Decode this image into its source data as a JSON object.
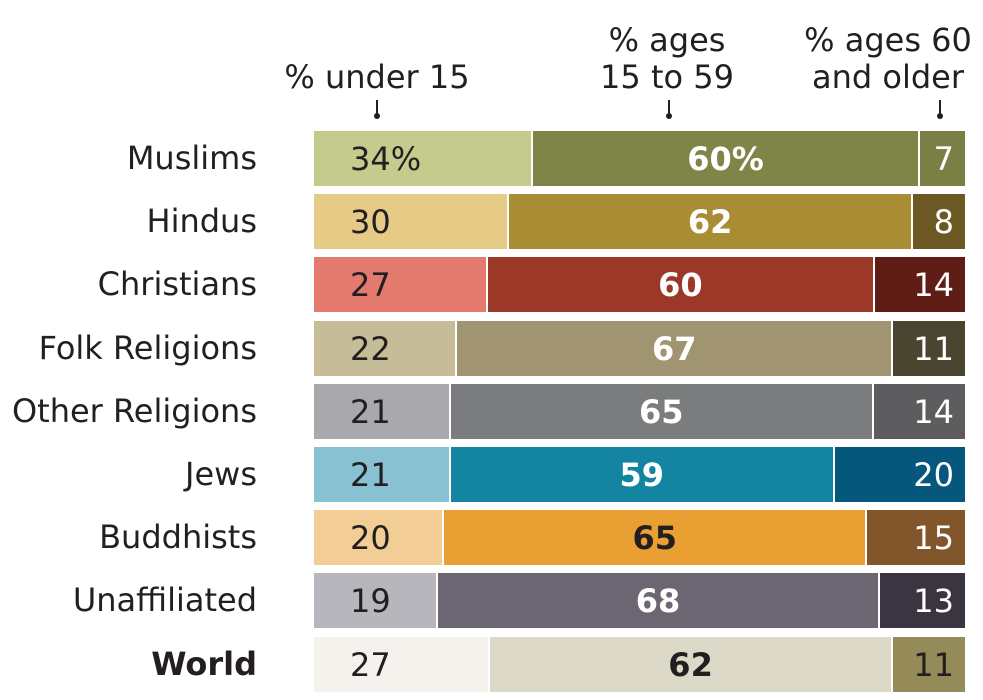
{
  "headers": {
    "under15": "% under 15",
    "age15to59_line1": "% ages",
    "age15to59_line2": "15 to 59",
    "age60_line1": "% ages 60",
    "age60_line2": "and older"
  },
  "chart_data": {
    "type": "bar",
    "stacked": true,
    "orientation": "horizontal",
    "categories": [
      "Muslims",
      "Hindus",
      "Christians",
      "Folk Religions",
      "Other Religions",
      "Jews",
      "Buddhists",
      "Unaffiliated",
      "World"
    ],
    "series": [
      {
        "name": "% under 15",
        "values": [
          34,
          30,
          27,
          22,
          21,
          21,
          20,
          19,
          27
        ]
      },
      {
        "name": "% ages 15 to 59",
        "values": [
          60,
          62,
          60,
          67,
          65,
          59,
          65,
          68,
          62
        ]
      },
      {
        "name": "% ages 60 and older",
        "values": [
          7,
          8,
          14,
          11,
          14,
          20,
          15,
          13,
          11
        ]
      }
    ],
    "data_labels": [
      [
        "34%",
        "60%",
        "7"
      ],
      [
        "30",
        "62",
        "8"
      ],
      [
        "27",
        "60",
        "14"
      ],
      [
        "22",
        "67",
        "11"
      ],
      [
        "21",
        "65",
        "14"
      ],
      [
        "21",
        "59",
        "20"
      ],
      [
        "20",
        "65",
        "15"
      ],
      [
        "19",
        "68",
        "13"
      ],
      [
        "27",
        "62",
        "11"
      ]
    ],
    "colors": [
      [
        "#c4cb8d",
        "#7e8546",
        "#7a7f45"
      ],
      [
        "#e6cb86",
        "#a98d34",
        "#6c5823"
      ],
      [
        "#e4796e",
        "#9c3828",
        "#5f1d15"
      ],
      [
        "#c7bc98",
        "#a09570",
        "#4a4530"
      ],
      [
        "#a9a9ad",
        "#7b7c7d",
        "#5d5d5f"
      ],
      [
        "#87c1d2",
        "#1484a3",
        "#05587c"
      ],
      [
        "#f2cd96",
        "#e99f32",
        "#80562a"
      ],
      [
        "#b8b6bd",
        "#6c6673",
        "#3a3541"
      ],
      [
        "#f3f2ec",
        "#dcd9c8",
        "#948b59"
      ]
    ],
    "text_colors": [
      [
        "#231f20",
        "#ffffff",
        "#ffffff"
      ],
      [
        "#231f20",
        "#ffffff",
        "#ffffff"
      ],
      [
        "#231f20",
        "#ffffff",
        "#ffffff"
      ],
      [
        "#231f20",
        "#ffffff",
        "#ffffff"
      ],
      [
        "#231f20",
        "#ffffff",
        "#ffffff"
      ],
      [
        "#231f20",
        "#ffffff",
        "#ffffff"
      ],
      [
        "#231f20",
        "#231f20",
        "#ffffff"
      ],
      [
        "#231f20",
        "#ffffff",
        "#ffffff"
      ],
      [
        "#231f20",
        "#231f20",
        "#231f20"
      ]
    ],
    "bold_categories": [
      "World"
    ]
  }
}
